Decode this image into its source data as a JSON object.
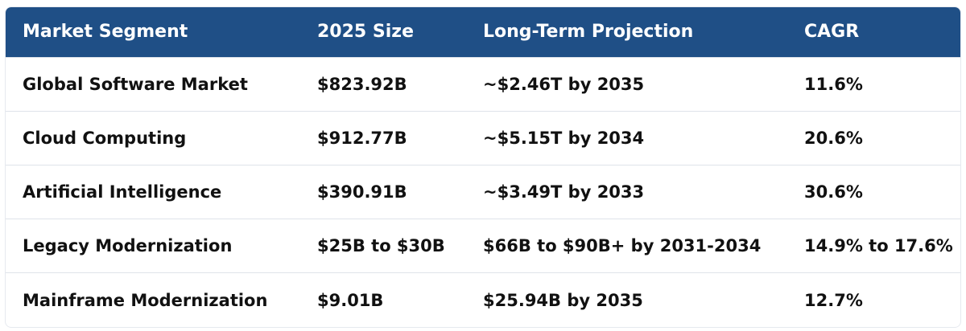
{
  "table": {
    "headers": [
      "Market Segment",
      "2025 Size",
      "Long-Term Projection",
      "CAGR"
    ],
    "rows": [
      [
        "Global Software Market",
        "$823.92B",
        "~$2.46T by 2035",
        "11.6%"
      ],
      [
        "Cloud Computing",
        "$912.77B",
        "~$5.15T by 2034",
        "20.6%"
      ],
      [
        "Artificial Intelligence",
        "$390.91B",
        "~$3.49T by 2033",
        "30.6%"
      ],
      [
        "Legacy Modernization",
        "$25B to $30B",
        "$66B to $90B+ by 2031-2034",
        "14.9% to 17.6%"
      ],
      [
        "Mainframe Modernization",
        "$9.01B",
        "$25.94B by 2035",
        "12.7%"
      ]
    ]
  },
  "colors": {
    "header_bg": "#1f4f86",
    "header_text": "#ffffff",
    "body_text": "#111111",
    "row_divider": "#dfe3ea"
  }
}
